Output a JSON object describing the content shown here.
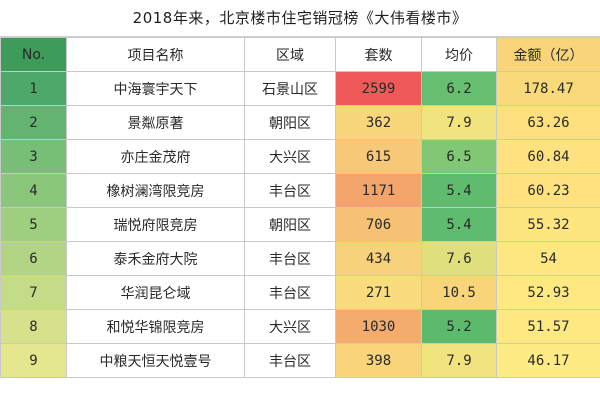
{
  "title": "2018年来，北京楼市住宅销冠榜《大伟看楼市》",
  "headers": {
    "no": "No.",
    "name": "项目名称",
    "district": "区域",
    "units": "套数",
    "avg": "均价",
    "amount": "金额（亿）"
  },
  "rows": [
    {
      "no": "1",
      "name": "中海寰宇天下",
      "district": "石景山区",
      "units": "2599",
      "avg": "6.2",
      "amount": "178.47",
      "colors": {
        "no": "#4ea86a",
        "units": "#ef5a58",
        "avg": "#66bf70",
        "amount": "#f9d979"
      }
    },
    {
      "no": "2",
      "name": "景粼原著",
      "district": "朝阳区",
      "units": "362",
      "avg": "7.9",
      "amount": "63.26",
      "colors": {
        "no": "#62b470",
        "units": "#f8d77a",
        "avg": "#f1e37d",
        "amount": "#fce07d"
      }
    },
    {
      "no": "3",
      "name": "亦庄金茂府",
      "district": "大兴区",
      "units": "615",
      "avg": "6.5",
      "amount": "60.84",
      "colors": {
        "no": "#77bf76",
        "units": "#f7c877",
        "avg": "#80c873",
        "amount": "#fde27f"
      }
    },
    {
      "no": "4",
      "name": "橡树澜湾限竞房",
      "district": "丰台区",
      "units": "1171",
      "avg": "5.4",
      "amount": "60.23",
      "colors": {
        "no": "#8ac77b",
        "units": "#f3a46b",
        "avg": "#5fbb6e",
        "amount": "#fde27f"
      }
    },
    {
      "no": "5",
      "name": "瑞悦府限竞房",
      "district": "朝阳区",
      "units": "706",
      "avg": "5.4",
      "amount": "55.32",
      "colors": {
        "no": "#9ece80",
        "units": "#f6c175",
        "avg": "#5fbb6e",
        "amount": "#fde680"
      }
    },
    {
      "no": "6",
      "name": "泰禾金府大院",
      "district": "丰台区",
      "units": "434",
      "avg": "7.6",
      "amount": "54",
      "colors": {
        "no": "#b1d584",
        "units": "#f8d27a",
        "avg": "#dfe07c",
        "amount": "#fde781"
      }
    },
    {
      "no": "7",
      "name": "华润昆仑域",
      "district": "丰台区",
      "units": "271",
      "avg": "10.5",
      "amount": "52.93",
      "colors": {
        "no": "#c4dc88",
        "units": "#f9dc7c",
        "avg": "#f9d57a",
        "amount": "#fde882"
      }
    },
    {
      "no": "8",
      "name": "和悦华锦限竞房",
      "district": "大兴区",
      "units": "1030",
      "avg": "5.2",
      "amount": "51.57",
      "colors": {
        "no": "#d5e28b",
        "units": "#f4ac6d",
        "avg": "#5cba6d",
        "amount": "#fde882"
      }
    },
    {
      "no": "9",
      "name": "中粮天恒天悦壹号",
      "district": "丰台区",
      "units": "398",
      "avg": "7.9",
      "amount": "46.17",
      "colors": {
        "no": "#e5e78e",
        "units": "#f8d47a",
        "avg": "#f1e37d",
        "amount": "#feeb84"
      }
    }
  ],
  "header_colors": {
    "no": "#3e9c5b",
    "name": "#ffffff",
    "district": "#ffffff",
    "units": "#ffffff",
    "avg": "#ffffff",
    "amount": "#f8d57a"
  }
}
